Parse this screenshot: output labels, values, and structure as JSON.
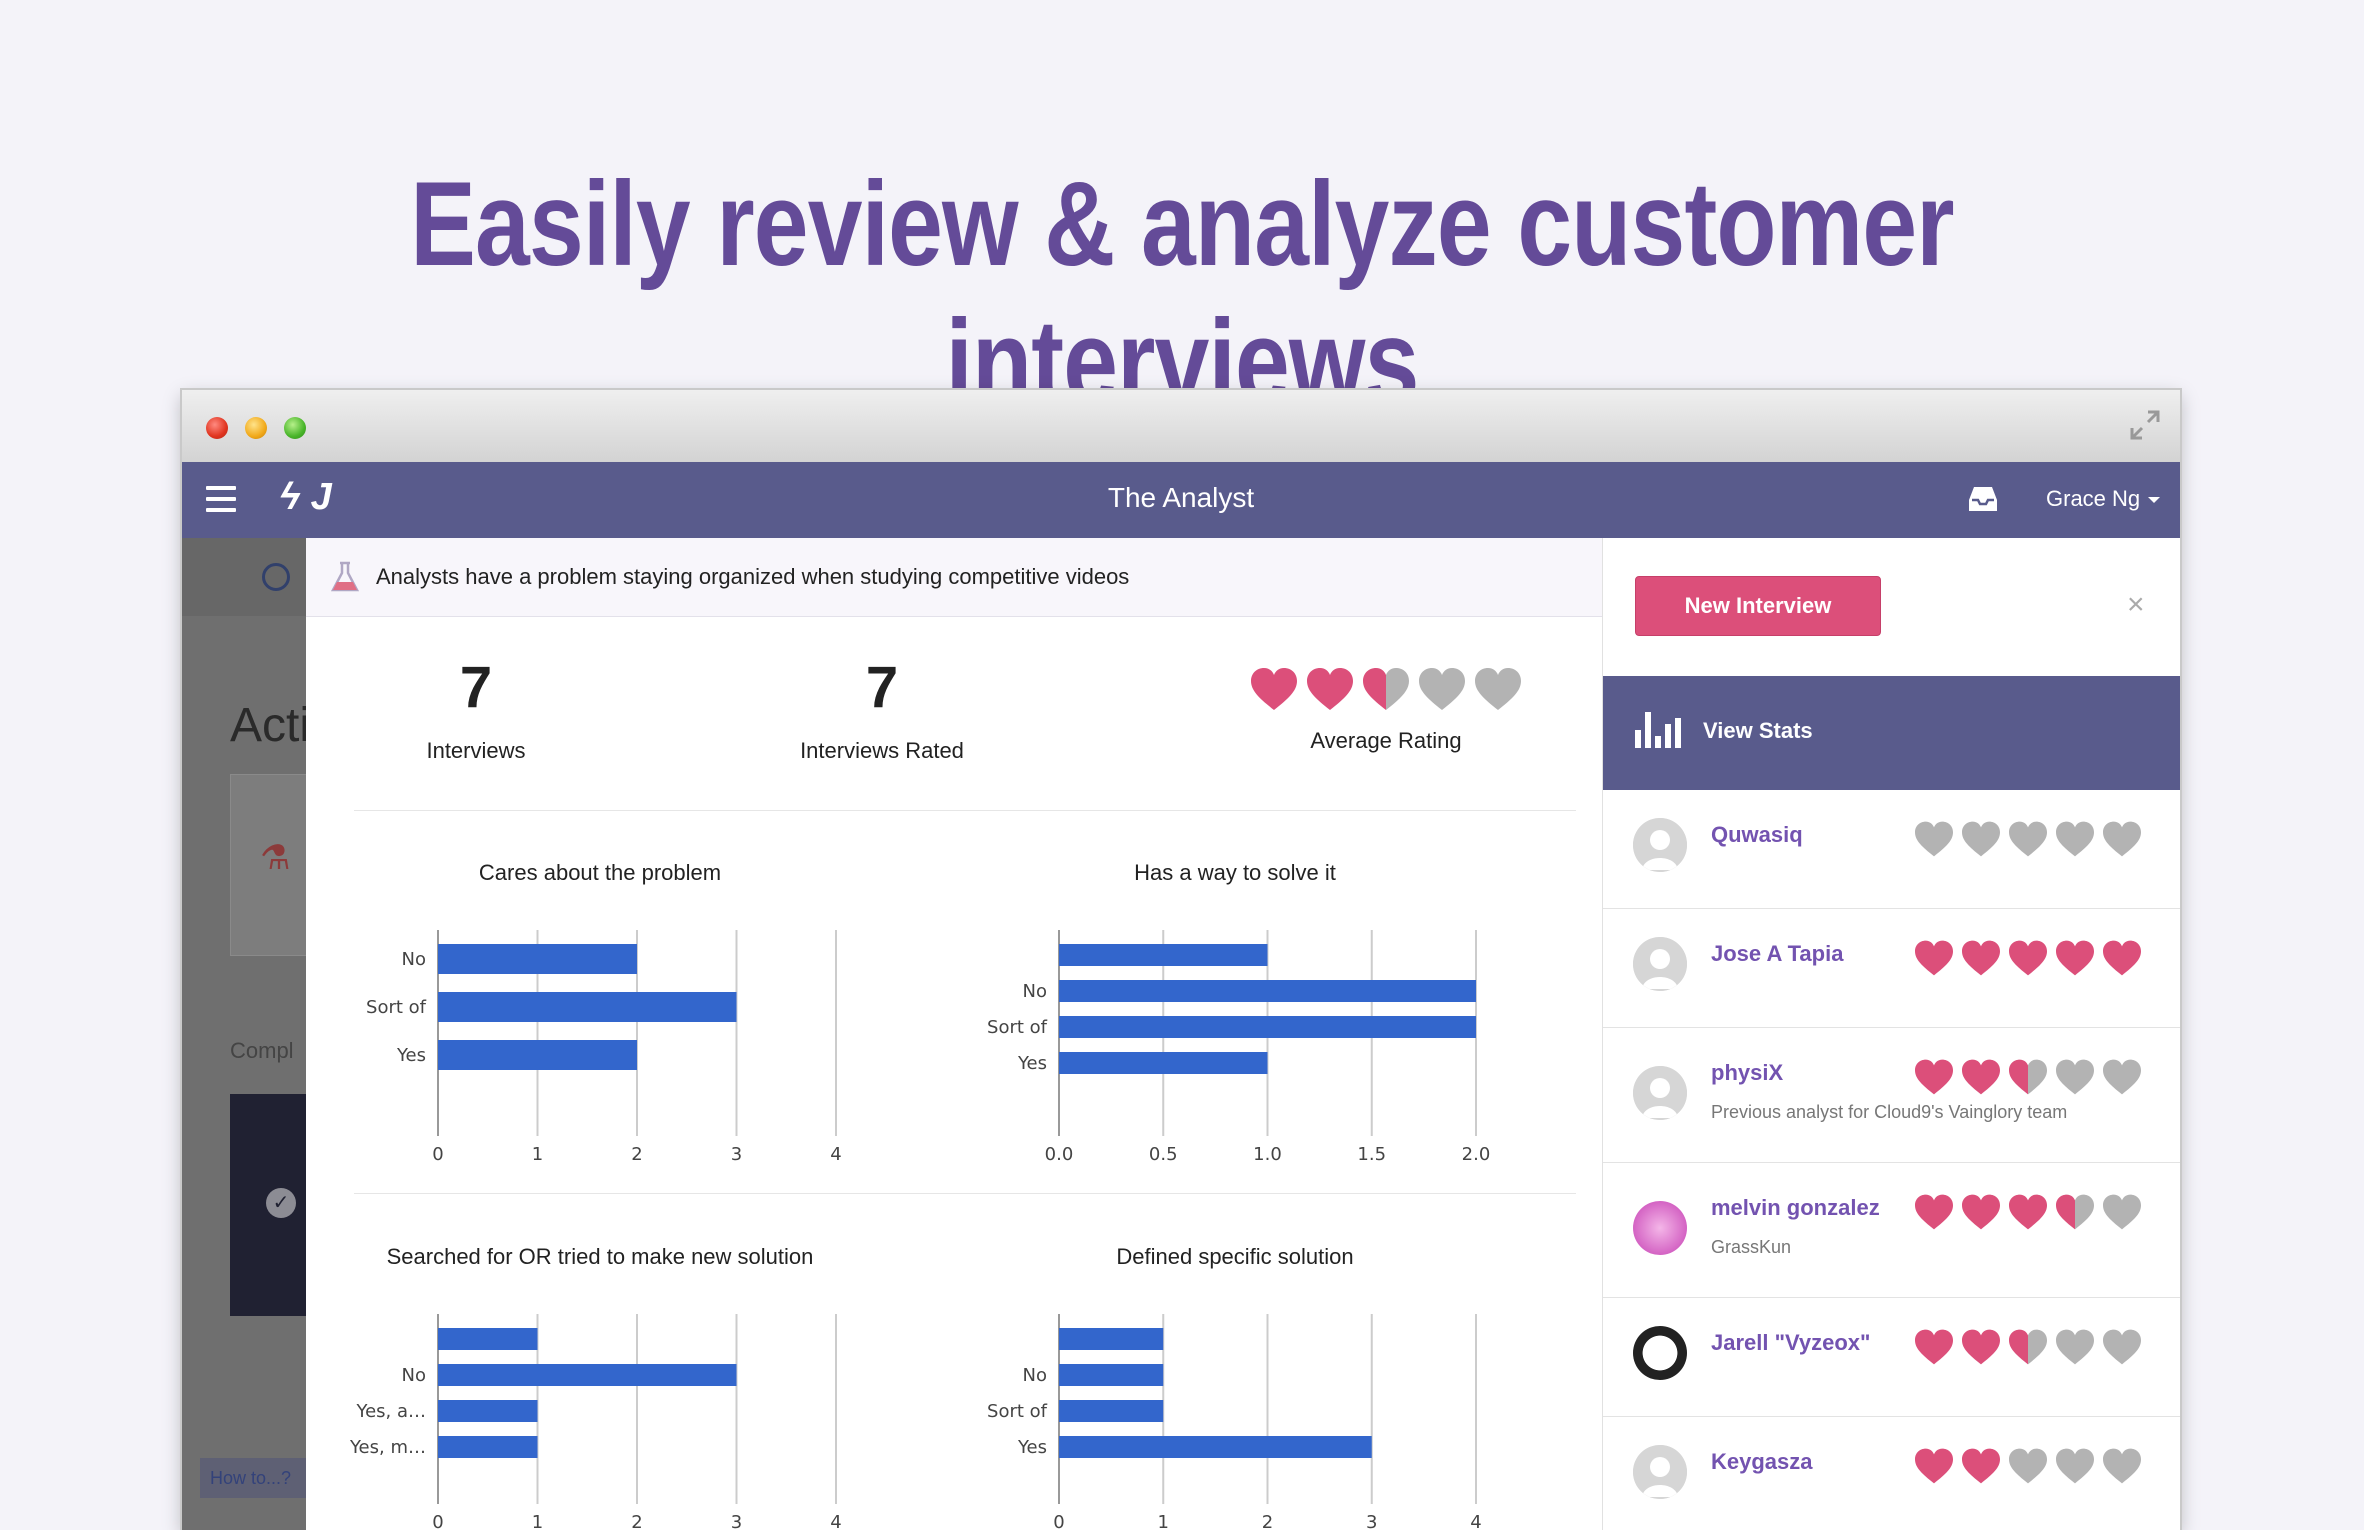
{
  "headline": "Easily review & analyze customer interviews",
  "colors": {
    "accent": "#595b8c",
    "heart_on": "#dc4f7a",
    "heart_off": "#b3b3b3",
    "bar": "#3366cc",
    "headline": "#644b98"
  },
  "window": {
    "controls": [
      "close",
      "minimize",
      "zoom"
    ],
    "expand_icon": "expand-icon"
  },
  "appbar": {
    "logo": "ϟ J",
    "title": "The Analyst",
    "user": "Grace Ng"
  },
  "background_page": {
    "heading": "Acti",
    "label": "Compl",
    "help": "How to...?"
  },
  "problem": {
    "text": "Analysts have a problem staying organized when studying competitive videos"
  },
  "stats": {
    "interviews": {
      "value": "7",
      "label": "Interviews"
    },
    "rated": {
      "value": "7",
      "label": "Interviews Rated"
    },
    "average": {
      "label": "Average Rating",
      "rating": 2.5
    }
  },
  "chart_data": [
    {
      "type": "bar",
      "orientation": "horizontal",
      "title": "Cares about the problem",
      "categories": [
        "No",
        "Sort of",
        "Yes"
      ],
      "values": [
        2,
        3,
        2
      ],
      "xlim": [
        0,
        4
      ],
      "ticks": [
        "0",
        "1",
        "2",
        "3",
        "4"
      ],
      "grid": true
    },
    {
      "type": "bar",
      "orientation": "horizontal",
      "title": "Has a way to solve it",
      "categories": [
        "",
        "No",
        "Sort of",
        "Yes"
      ],
      "values": [
        1,
        2,
        2,
        1
      ],
      "xlim": [
        0,
        2
      ],
      "ticks": [
        "0.0",
        "0.5",
        "1.0",
        "1.5",
        "2.0"
      ],
      "grid": true
    },
    {
      "type": "bar",
      "orientation": "horizontal",
      "title": "Searched for OR tried to make new solution",
      "categories": [
        "",
        "No",
        "Yes, a…",
        "Yes, m…"
      ],
      "values": [
        1,
        3,
        1,
        1
      ],
      "xlim": [
        0,
        4
      ],
      "ticks": [
        "0",
        "1",
        "2",
        "3",
        "4"
      ],
      "grid": true
    },
    {
      "type": "bar",
      "orientation": "horizontal",
      "title": "Defined specific solution",
      "categories": [
        "",
        "No",
        "Sort of",
        "Yes"
      ],
      "values": [
        1,
        1,
        1,
        3
      ],
      "xlim": [
        0,
        4
      ],
      "ticks": [
        "0",
        "1",
        "2",
        "3",
        "4"
      ],
      "grid": true
    }
  ],
  "side": {
    "new_button": "New Interview",
    "close": "×",
    "view_stats": "View Stats"
  },
  "interviews": [
    {
      "name": "Quwasiq",
      "subtitle": "",
      "rating": 0,
      "avatar": "default"
    },
    {
      "name": "Jose A Tapia",
      "subtitle": "",
      "rating": 5,
      "avatar": "default"
    },
    {
      "name": "physiX",
      "subtitle": "Previous analyst for Cloud9's Vainglory team",
      "rating": 2.5,
      "avatar": "default"
    },
    {
      "name": "melvin gonzalez",
      "subtitle": "GrassKun",
      "rating": 3.5,
      "avatar": "pink"
    },
    {
      "name": "Jarell \"Vyzeox\"",
      "subtitle": "",
      "rating": 2.5,
      "avatar": "dark"
    },
    {
      "name": "Keygasza",
      "subtitle": "",
      "rating": 2,
      "avatar": "default"
    }
  ]
}
